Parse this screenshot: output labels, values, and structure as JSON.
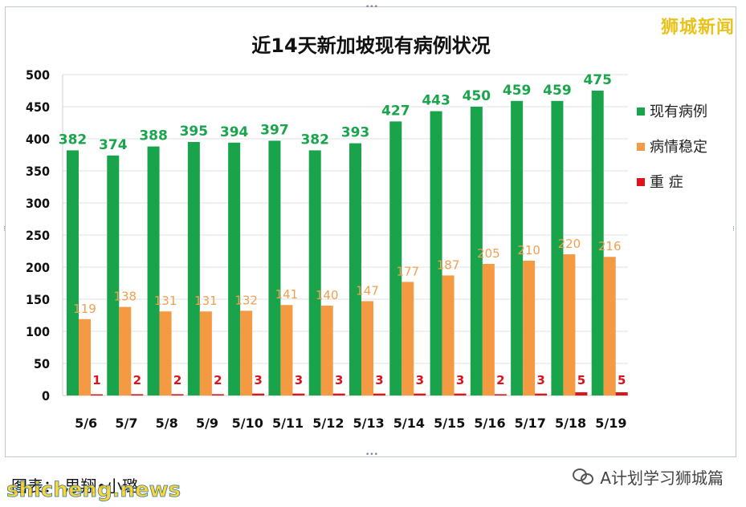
{
  "brand": "狮城新闻",
  "caption": "图表： 思翔•小璐",
  "watermark": "shicheng.news",
  "wechat_account": "A计划学习狮城篇",
  "chart_data": {
    "type": "bar",
    "title": "近14天新加坡现有病例状况",
    "categories": [
      "5/6",
      "5/7",
      "5/8",
      "5/9",
      "5/10",
      "5/11",
      "5/12",
      "5/13",
      "5/14",
      "5/15",
      "5/16",
      "5/17",
      "5/18",
      "5/19"
    ],
    "series": [
      {
        "name": "现有病例",
        "color": "#19a34a",
        "label_color": "#1aa54d",
        "values": [
          382,
          374,
          388,
          395,
          394,
          397,
          382,
          393,
          427,
          443,
          450,
          459,
          459,
          475
        ]
      },
      {
        "name": "病情稳定",
        "color": "#f39a43",
        "label_color": "#f1a050",
        "values": [
          119,
          138,
          131,
          131,
          132,
          141,
          140,
          147,
          177,
          187,
          205,
          210,
          220,
          216
        ]
      },
      {
        "name": "重 症",
        "color": "#e0121b",
        "label_color": "#d9141d",
        "values": [
          1,
          2,
          2,
          2,
          3,
          3,
          3,
          3,
          3,
          3,
          2,
          3,
          5,
          5
        ]
      }
    ],
    "yticks": [
      0,
      50,
      100,
      150,
      200,
      250,
      300,
      350,
      400,
      450,
      500
    ],
    "ylim": [
      0,
      500
    ],
    "grid": true,
    "legend": "right"
  }
}
